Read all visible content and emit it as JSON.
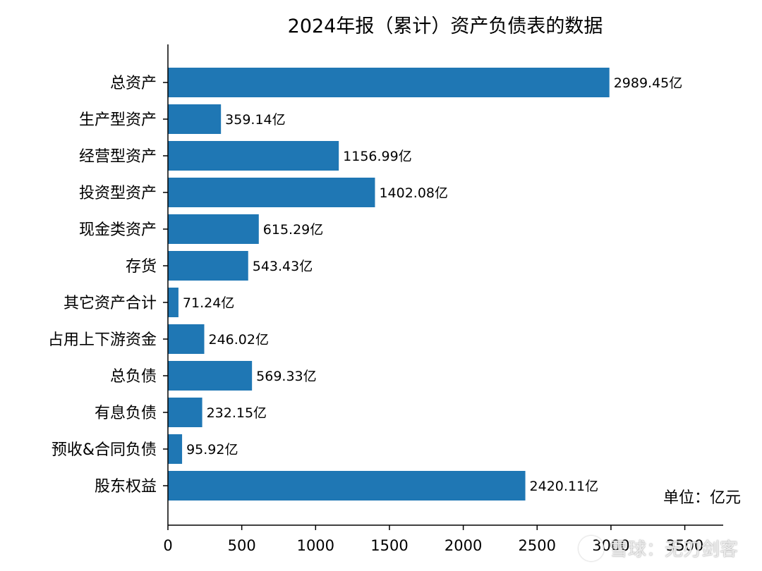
{
  "chart_data": {
    "type": "bar",
    "orientation": "horizontal",
    "title": "2024年报（累计）资产负债表的数据",
    "categories": [
      "总资产",
      "生产型资产",
      "经营型资产",
      "投资型资产",
      "现金类资产",
      "存货",
      "其它资产合计",
      "占用上下游资金",
      "总负债",
      "有息负债",
      "预收&合同负债",
      "股东权益"
    ],
    "values": [
      2989.45,
      359.14,
      1156.99,
      1402.08,
      615.29,
      543.43,
      71.24,
      246.02,
      569.33,
      232.15,
      95.92,
      2420.11
    ],
    "value_labels": [
      "2989.45亿",
      "359.14亿",
      "1156.99亿",
      "1402.08亿",
      "615.29亿",
      "543.43亿",
      "71.24亿",
      "246.02亿",
      "569.33亿",
      "232.15亿",
      "95.92亿",
      "2420.11亿"
    ],
    "xticks": [
      0,
      500,
      1000,
      1500,
      2000,
      2500,
      3000,
      3500
    ],
    "xlim": [
      0,
      3760
    ],
    "xlabel": "",
    "ylabel": "",
    "unit_note": "单位：亿元",
    "grid": false,
    "bar_color": "#1f77b4"
  },
  "watermark": "雪球：无刃剑客"
}
